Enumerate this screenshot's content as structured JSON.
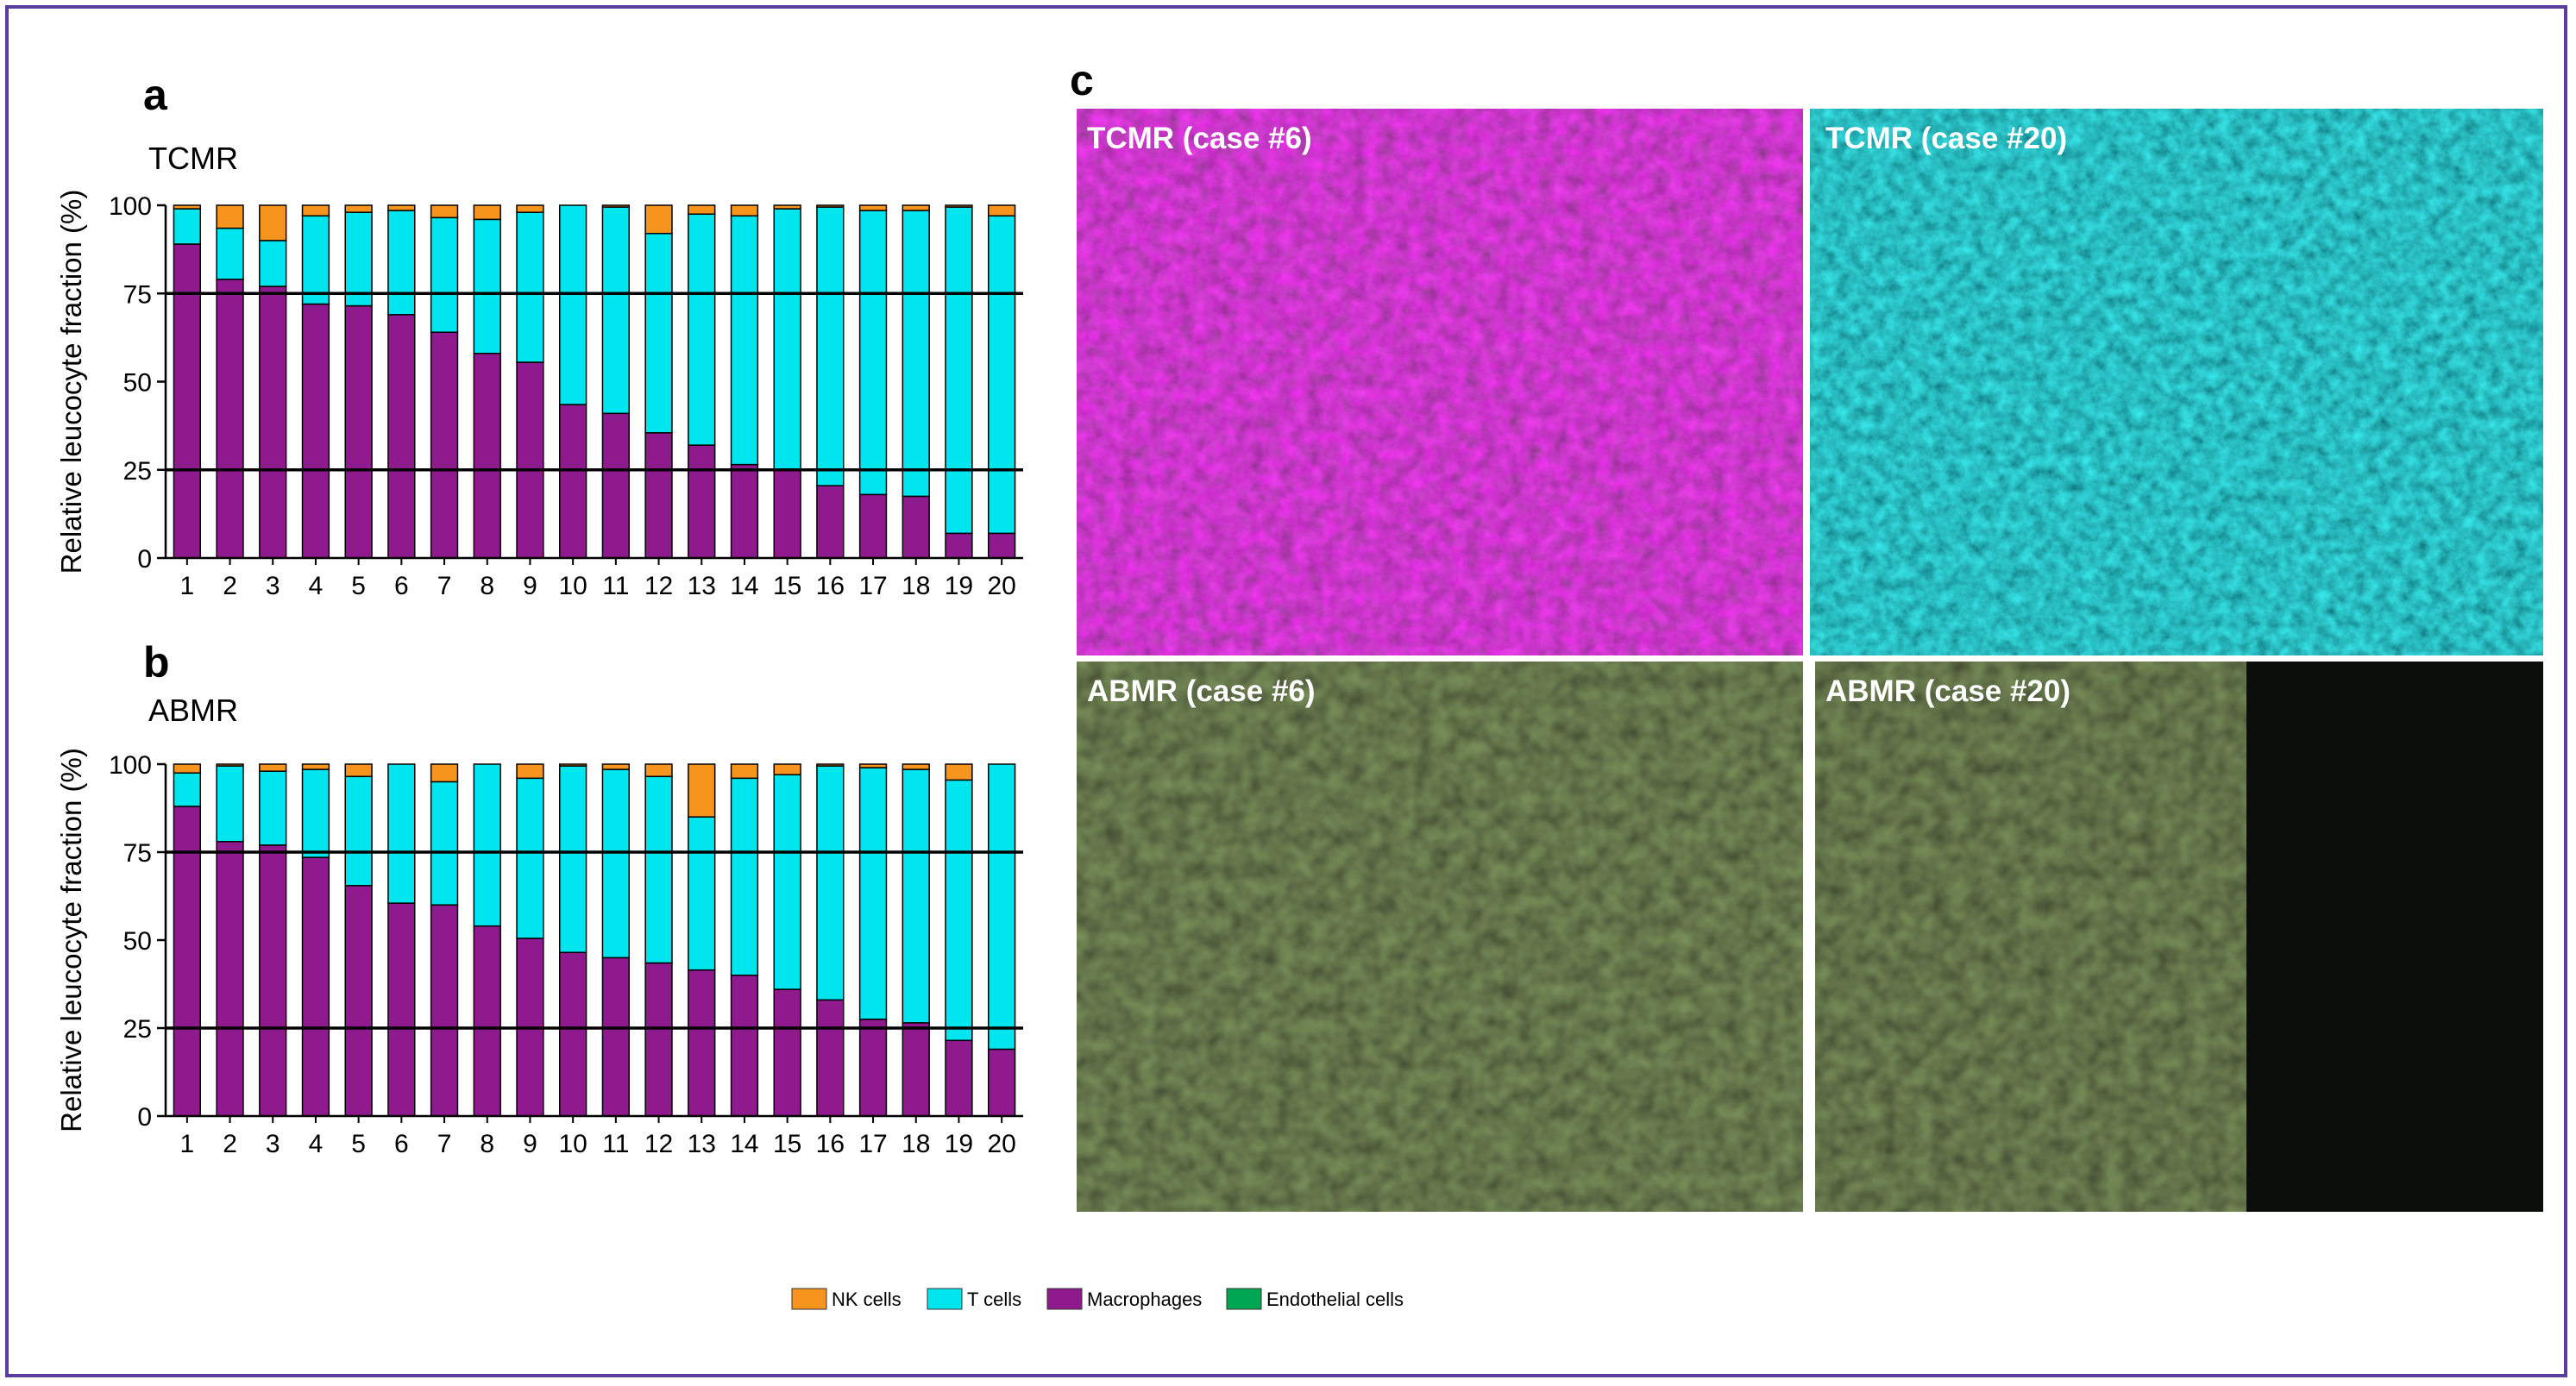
{
  "colors": {
    "nk": "#f7941d",
    "t": "#00e5ee",
    "macrophage": "#8e1a8e",
    "endothelial": "#00a651",
    "frame": "#5a3d9e"
  },
  "chart_data": [
    {
      "type": "bar",
      "stacked": true,
      "panel": "a",
      "title": "TCMR",
      "ylabel": "Relative leucocyte fraction (%)",
      "ylim": [
        0,
        100
      ],
      "yticks": [
        0,
        25,
        50,
        75,
        100
      ],
      "reference_lines": [
        25,
        75
      ],
      "categories": [
        "1",
        "2",
        "3",
        "4",
        "5",
        "6",
        "7",
        "8",
        "9",
        "10",
        "11",
        "12",
        "13",
        "14",
        "15",
        "16",
        "17",
        "18",
        "19",
        "20"
      ],
      "series": [
        {
          "name": "Macrophages",
          "color_key": "macrophage",
          "values": [
            89,
            79,
            77,
            72,
            71.5,
            69,
            64,
            58,
            55.5,
            43.5,
            41,
            35.5,
            32,
            26.5,
            25,
            20.5,
            18,
            17.5,
            7,
            7
          ]
        },
        {
          "name": "T cells",
          "color_key": "t",
          "values": [
            10,
            14.5,
            13,
            25,
            26.5,
            29.5,
            32.5,
            38,
            42.5,
            56.5,
            58.5,
            56.5,
            65.5,
            70.5,
            74,
            79,
            80.5,
            81,
            92.5,
            90
          ]
        },
        {
          "name": "NK cells",
          "color_key": "nk",
          "values": [
            1,
            6.5,
            10,
            3,
            2,
            1.5,
            3.5,
            4,
            2,
            0,
            0.5,
            8,
            2.5,
            3,
            1,
            0.5,
            1.5,
            1.5,
            0.5,
            3
          ]
        }
      ]
    },
    {
      "type": "bar",
      "stacked": true,
      "panel": "b",
      "title": "ABMR",
      "ylabel": "Relative leucocyte fraction (%)",
      "ylim": [
        0,
        100
      ],
      "yticks": [
        0,
        25,
        50,
        75,
        100
      ],
      "reference_lines": [
        25,
        75
      ],
      "categories": [
        "1",
        "2",
        "3",
        "4",
        "5",
        "6",
        "7",
        "8",
        "9",
        "10",
        "11",
        "12",
        "13",
        "14",
        "15",
        "16",
        "17",
        "18",
        "19",
        "20"
      ],
      "series": [
        {
          "name": "Macrophages",
          "color_key": "macrophage",
          "values": [
            88,
            78,
            77,
            73.5,
            65.5,
            60.5,
            60,
            54,
            50.5,
            46.5,
            45,
            43.5,
            41.5,
            40,
            36,
            33,
            27.5,
            26.5,
            21.5,
            19
          ]
        },
        {
          "name": "T cells",
          "color_key": "t",
          "values": [
            9.5,
            21.5,
            21,
            25,
            31,
            39.5,
            35,
            46,
            45.5,
            53,
            53.5,
            53,
            43.5,
            56,
            61,
            66.5,
            71.5,
            72,
            74,
            81
          ]
        },
        {
          "name": "NK cells",
          "color_key": "nk",
          "values": [
            2.5,
            0.5,
            2,
            1.5,
            3.5,
            0,
            5,
            0,
            4,
            0.5,
            1.5,
            3.5,
            15,
            4,
            3,
            0.5,
            1,
            1.5,
            4.5,
            0
          ]
        }
      ]
    }
  ],
  "panel_c": {
    "letter": "c",
    "images": [
      {
        "label": "TCMR (case #6)",
        "style": "magenta"
      },
      {
        "label": "TCMR (case #20)",
        "style": "cyan"
      },
      {
        "label": "ABMR (case #6)",
        "style": "green-magenta"
      },
      {
        "label": "ABMR (case #20)",
        "style": "green"
      }
    ]
  },
  "legend": [
    {
      "label": "NK cells",
      "color_key": "nk"
    },
    {
      "label": "T cells",
      "color_key": "t"
    },
    {
      "label": "Macrophages",
      "color_key": "macrophage"
    },
    {
      "label": "Endothelial cells",
      "color_key": "endothelial"
    }
  ]
}
